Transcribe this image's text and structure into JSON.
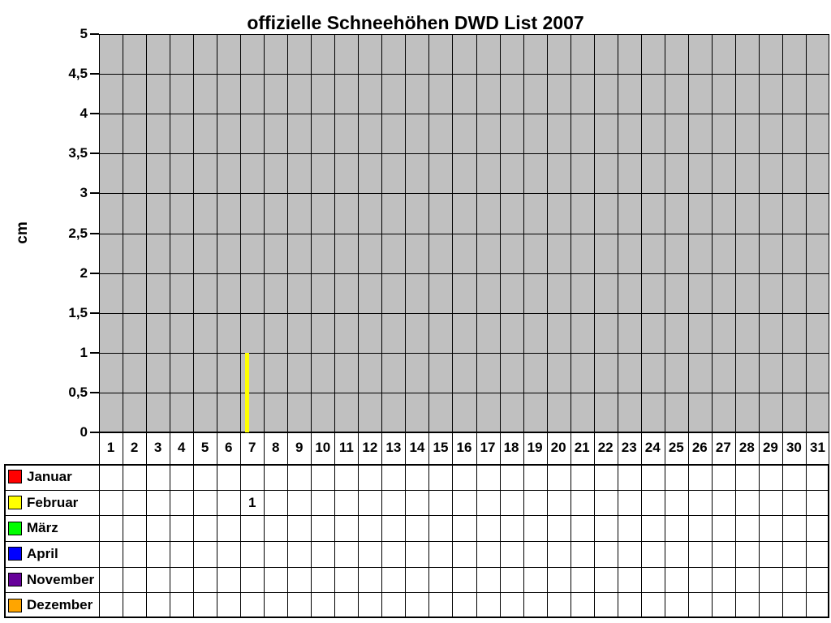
{
  "chart_data": {
    "type": "bar",
    "title": "offizielle Schneehöhen DWD List 2007",
    "ylabel": "cm",
    "xlabel": "",
    "ylim": [
      0,
      5
    ],
    "ytick_step": 0.5,
    "ytick_labels_top_to_bottom": [
      "5",
      "4,5",
      "4",
      "3,5",
      "3",
      "2,5",
      "2",
      "1,5",
      "1",
      "0,5",
      "0"
    ],
    "x_categories": [
      "1",
      "2",
      "3",
      "4",
      "5",
      "6",
      "7",
      "8",
      "9",
      "10",
      "11",
      "12",
      "13",
      "14",
      "15",
      "16",
      "17",
      "18",
      "19",
      "20",
      "21",
      "22",
      "23",
      "24",
      "25",
      "26",
      "27",
      "28",
      "29",
      "30",
      "31"
    ],
    "grid": true,
    "plot_bg_color": "#C0C0C0",
    "gridline_color": "#000000",
    "legend_position": "table-below-chart",
    "series": [
      {
        "name": "Januar",
        "color": "#FF0000",
        "values_by_day": {}
      },
      {
        "name": "Februar",
        "color": "#FFFF00",
        "values_by_day": {
          "7": 1
        }
      },
      {
        "name": "März",
        "color": "#00FF00",
        "values_by_day": {}
      },
      {
        "name": "April",
        "color": "#0000FF",
        "values_by_day": {}
      },
      {
        "name": "November",
        "color": "#660099",
        "values_by_day": {}
      },
      {
        "name": "Dezember",
        "color": "#FFA500",
        "values_by_day": {}
      }
    ]
  }
}
